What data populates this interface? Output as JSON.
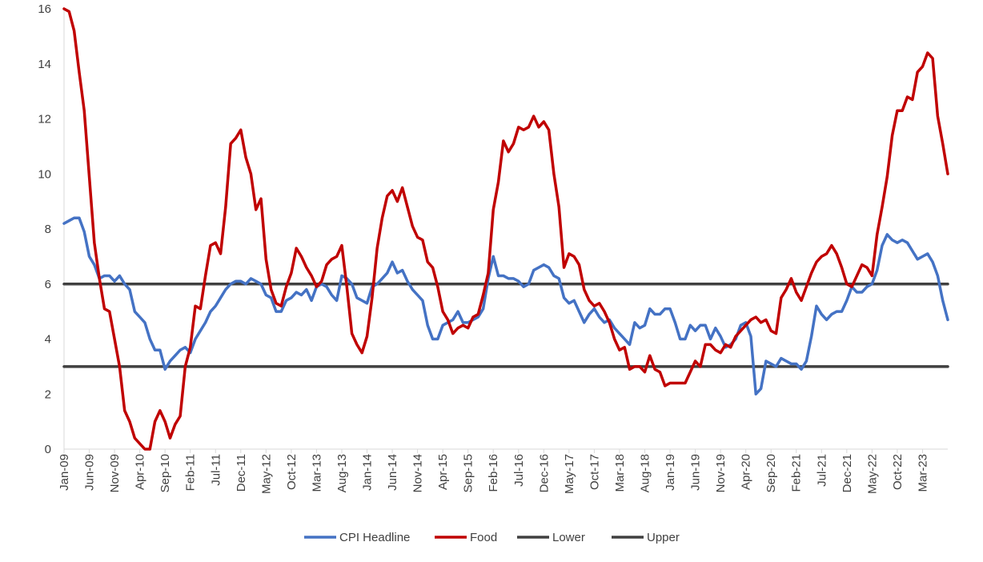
{
  "chart_data": {
    "type": "line",
    "title": "",
    "xlabel": "",
    "ylabel": "",
    "ylim": [
      0,
      16
    ],
    "yticks": [
      "0",
      "2",
      "4",
      "6",
      "8",
      "10",
      "12",
      "14",
      "16"
    ],
    "x_start": "Jan-09",
    "x_end": "Jul-23",
    "xtick_labels": [
      "Jan-09",
      "Jun-09",
      "Nov-09",
      "Apr-10",
      "Sep-10",
      "Feb-11",
      "Jul-11",
      "Dec-11",
      "May-12",
      "Oct-12",
      "Mar-13",
      "Aug-13",
      "Jan-14",
      "Jun-14",
      "Nov-14",
      "Apr-15",
      "Sep-15",
      "Feb-16",
      "Jul-16",
      "Dec-16",
      "May-17",
      "Oct-17",
      "Mar-18",
      "Aug-18",
      "Jan-19",
      "Jun-19",
      "Nov-19",
      "Apr-20",
      "Sep-20",
      "Feb-21",
      "Jul-21",
      "Dec-21",
      "May-22",
      "Oct-22",
      "Mar-23"
    ],
    "grid": false,
    "legend_position": "bottom",
    "series": [
      {
        "name": "CPI Headline",
        "color": "#4472C4",
        "values": [
          8.2,
          8.3,
          8.4,
          8.4,
          7.9,
          7.0,
          6.7,
          6.2,
          6.3,
          6.3,
          6.1,
          6.3,
          6.0,
          5.8,
          5.0,
          4.8,
          4.6,
          4.0,
          3.6,
          3.6,
          2.9,
          3.2,
          3.4,
          3.6,
          3.7,
          3.5,
          4.0,
          4.3,
          4.6,
          5.0,
          5.2,
          5.5,
          5.8,
          6.0,
          6.1,
          6.1,
          6.0,
          6.2,
          6.1,
          6.0,
          5.6,
          5.5,
          5.0,
          5.0,
          5.4,
          5.5,
          5.7,
          5.6,
          5.8,
          5.4,
          5.9,
          6.0,
          5.9,
          5.6,
          5.4,
          6.3,
          6.2,
          6.0,
          5.5,
          5.4,
          5.3,
          5.9,
          6.0,
          6.2,
          6.4,
          6.8,
          6.4,
          6.5,
          6.1,
          5.8,
          5.6,
          5.4,
          4.5,
          4.0,
          4.0,
          4.5,
          4.6,
          4.7,
          5.0,
          4.6,
          4.6,
          4.7,
          4.8,
          5.1,
          6.2,
          7.0,
          6.3,
          6.3,
          6.2,
          6.2,
          6.1,
          5.9,
          6.0,
          6.5,
          6.6,
          6.7,
          6.6,
          6.3,
          6.2,
          5.5,
          5.3,
          5.4,
          5.0,
          4.6,
          4.9,
          5.1,
          4.8,
          4.6,
          4.7,
          4.4,
          4.2,
          4.0,
          3.8,
          4.6,
          4.4,
          4.5,
          5.1,
          4.9,
          4.9,
          5.1,
          5.1,
          4.6,
          4.0,
          4.0,
          4.5,
          4.3,
          4.5,
          4.5,
          4.0,
          4.4,
          4.1,
          3.7,
          3.8,
          4.0,
          4.5,
          4.6,
          4.1,
          2.0,
          2.2,
          3.2,
          3.1,
          3.0,
          3.3,
          3.2,
          3.1,
          3.1,
          2.9,
          3.2,
          4.1,
          5.2,
          4.9,
          4.7,
          4.9,
          5.0,
          5.0,
          5.4,
          5.9,
          5.7,
          5.7,
          5.9,
          6.0,
          6.5,
          7.4,
          7.8,
          7.6,
          7.5,
          7.6,
          7.5,
          7.2,
          6.9,
          7.0,
          7.1,
          6.8,
          6.3,
          5.4,
          4.7
        ]
      },
      {
        "name": "Food",
        "color": "#C00000",
        "values": [
          16.0,
          15.9,
          15.2,
          13.7,
          12.3,
          9.9,
          7.5,
          6.2,
          5.1,
          5.0,
          4.0,
          3.0,
          1.4,
          1.0,
          0.4,
          0.2,
          0.0,
          0.0,
          1.0,
          1.4,
          1.0,
          0.4,
          0.9,
          1.2,
          3.0,
          3.7,
          5.2,
          5.1,
          6.3,
          7.4,
          7.5,
          7.1,
          8.8,
          11.1,
          11.3,
          11.6,
          10.6,
          10.0,
          8.7,
          9.1,
          6.9,
          5.8,
          5.3,
          5.2,
          5.9,
          6.4,
          7.3,
          7.0,
          6.6,
          6.3,
          5.9,
          6.1,
          6.7,
          6.9,
          7.0,
          7.4,
          5.9,
          4.2,
          3.8,
          3.5,
          4.1,
          5.5,
          7.3,
          8.4,
          9.2,
          9.4,
          9.0,
          9.5,
          8.8,
          8.1,
          7.7,
          7.6,
          6.8,
          6.6,
          5.9,
          5.0,
          4.7,
          4.2,
          4.4,
          4.5,
          4.4,
          4.8,
          4.9,
          5.6,
          6.4,
          8.7,
          9.7,
          11.2,
          10.8,
          11.1,
          11.7,
          11.6,
          11.7,
          12.1,
          11.7,
          11.9,
          11.6,
          10.0,
          8.8,
          6.6,
          7.1,
          7.0,
          6.7,
          5.8,
          5.4,
          5.2,
          5.3,
          5.0,
          4.6,
          4.0,
          3.6,
          3.7,
          2.9,
          3.0,
          3.0,
          2.8,
          3.4,
          2.9,
          2.8,
          2.3,
          2.4,
          2.4,
          2.4,
          2.4,
          2.8,
          3.2,
          3.0,
          3.8,
          3.8,
          3.6,
          3.5,
          3.8,
          3.7,
          4.1,
          4.3,
          4.5,
          4.7,
          4.8,
          4.6,
          4.7,
          4.3,
          4.2,
          5.5,
          5.8,
          6.2,
          5.7,
          5.4,
          5.9,
          6.4,
          6.8,
          7.0,
          7.1,
          7.4,
          7.1,
          6.6,
          6.0,
          5.9,
          6.3,
          6.7,
          6.6,
          6.3,
          7.8,
          8.8,
          9.9,
          11.4,
          12.3,
          12.3,
          12.8,
          12.7,
          13.7,
          13.9,
          14.4,
          14.2,
          12.1,
          11.1,
          10.0
        ]
      },
      {
        "name": "Lower",
        "color": "#404040",
        "values": [
          3,
          3
        ]
      },
      {
        "name": "Upper",
        "color": "#404040",
        "values": [
          6,
          6
        ]
      }
    ]
  }
}
